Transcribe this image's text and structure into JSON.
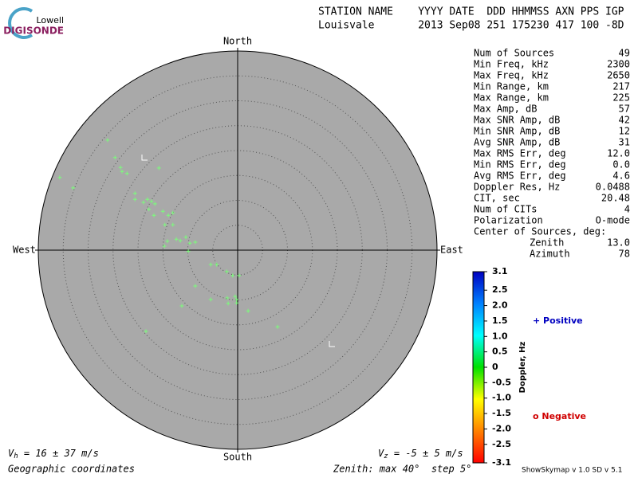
{
  "logo": {
    "top": "Lowell",
    "bottom": "DIGISONDE"
  },
  "header": {
    "line1": "STATION NAME    YYYY DATE  DDD HHMMSS AXN PPS IGP",
    "line2": "Louisvale       2013 Sep08 251 175230 417 100 -8D"
  },
  "stats": {
    "rows": [
      [
        "Num of Sources",
        "49"
      ],
      [
        "Min Freq, kHz",
        "2300"
      ],
      [
        "Max Freq, kHz",
        "2650"
      ],
      [
        "Min Range, km",
        "217"
      ],
      [
        "Max Range, km",
        "225"
      ],
      [
        "Max Amp, dB",
        "57"
      ],
      [
        "Max SNR Amp, dB",
        "42"
      ],
      [
        "Min SNR Amp, dB",
        "12"
      ],
      [
        "Avg SNR Amp, dB",
        "31"
      ],
      [
        "Max RMS Err, deg",
        "12.0"
      ],
      [
        "Min RMS Err, deg",
        "0.0"
      ],
      [
        "Avg RMS Err, deg",
        "4.6"
      ],
      [
        "Doppler Res, Hz",
        "0.0488"
      ],
      [
        "CIT, sec",
        "20.48"
      ],
      [
        "Num of CITs",
        "4"
      ],
      [
        "Polarization",
        "O-mode"
      ]
    ],
    "center_title": "Center of Sources, deg:",
    "center_rows": [
      [
        "Zenith",
        "13.0"
      ],
      [
        "Azimuth",
        "78"
      ]
    ]
  },
  "chart_data": {
    "type": "skymap",
    "directions": {
      "north": "North",
      "south": "South",
      "east": "East",
      "west": "West"
    },
    "rlim": [
      0,
      40
    ],
    "rings": [
      5,
      10,
      15,
      20,
      25,
      30,
      35,
      40
    ],
    "point_color": "#7cfc7c",
    "x": [
      -26.1,
      -24.6,
      -23.5,
      -23.2,
      -22.2,
      -15.8,
      -35.7,
      -33.0,
      -20.6,
      -20.6,
      -18.9,
      -18.1,
      -17.3,
      -16.6,
      -17.8,
      -16.8,
      -15.0,
      -13.9,
      -13.0,
      -14.6,
      -13.0,
      -14.1,
      -14.7,
      -12.3,
      -11.5,
      -10.4,
      -9.6,
      -8.5,
      -9.9,
      -5.4,
      -4.2,
      -2.2,
      -1.0,
      0.3,
      -8.5,
      -5.4,
      -2.1,
      -0.5,
      -0.2,
      -1.9,
      -0.2,
      -11.2,
      2.1,
      8.0,
      -18.4
    ],
    "y": [
      22.1,
      18.6,
      16.6,
      15.8,
      15.4,
      16.5,
      14.6,
      12.5,
      11.4,
      10.2,
      9.6,
      10.2,
      9.8,
      9.3,
      8.2,
      7.0,
      7.8,
      7.0,
      7.5,
      5.1,
      5.1,
      1.8,
      0.8,
      2.2,
      1.9,
      2.6,
      1.4,
      1.6,
      -0.2,
      -2.9,
      -2.9,
      -4.3,
      -5.1,
      -5.1,
      -7.2,
      -9.9,
      -9.6,
      -9.3,
      -9.9,
      -10.7,
      -10.6,
      -11.2,
      -12.2,
      -15.4,
      -16.3
    ],
    "colorbar": {
      "label": "Doppler, Hz",
      "clim": [
        -3.1,
        3.1
      ],
      "colors": [
        "#ff0000",
        "#ff8000",
        "#ffff00",
        "#00e000",
        "#00ffff",
        "#0080ff",
        "#0000c0"
      ],
      "ticks": [
        3.1,
        {
          "value": 2.5,
          "label": "2.5"
        },
        {
          "value": 2,
          "label": "2.0"
        },
        {
          "value": 1.5,
          "label": "1.5"
        },
        {
          "value": 1,
          "label": "1.0"
        },
        {
          "value": 0.5,
          "label": "0.5"
        },
        0,
        {
          "value": -0.5,
          "label": "-0.5"
        },
        {
          "value": -1,
          "label": "-1.0"
        },
        {
          "value": -1.5,
          "label": "-1.5"
        },
        {
          "value": -2,
          "label": "-2.0"
        },
        {
          "value": -2.5,
          "label": "-2.5"
        },
        -3.1
      ]
    },
    "legend": {
      "positive": "+ Positive",
      "positive_color": "#0000c0",
      "negative": "o Negative",
      "negative_color": "#d00000"
    }
  },
  "footer": {
    "vh": {
      "symbol": "V",
      "sub": "h",
      "text": " = 16 ± 37 m/s"
    },
    "vz": {
      "symbol": "V",
      "sub": "z",
      "text": " = -5 ± 5 m/s"
    },
    "coords": "Geographic coordinates",
    "zenith": "Zenith: max 40°  step 5°",
    "version": "ShowSkymap v 1.0  SD v 5.1"
  }
}
